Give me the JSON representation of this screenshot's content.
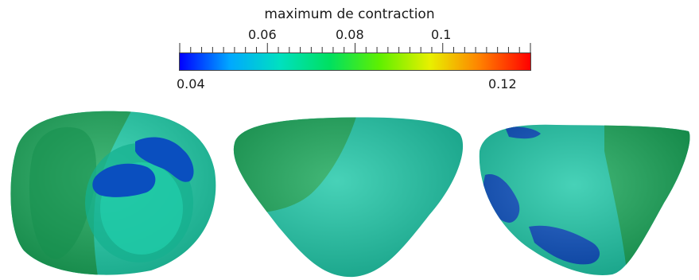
{
  "colorbar": {
    "title": "maximum de contraction",
    "min_label": "0.04",
    "max_label": "0.12",
    "tick_labels": [
      "0.06",
      "0.08",
      "0.1"
    ],
    "range": [
      0.04,
      0.12
    ],
    "colormap": [
      "#0000ff",
      "#00a8ff",
      "#00e0c0",
      "#00e060",
      "#60f000",
      "#e8f000",
      "#ff8000",
      "#ff0000"
    ]
  },
  "views": [
    {
      "name": "base-view",
      "colors": [
        "#1aa85a",
        "#1fcfaa",
        "#0a4fbf"
      ]
    },
    {
      "name": "anterior-view",
      "colors": [
        "#1aa85a",
        "#1fc8a8"
      ]
    },
    {
      "name": "lateral-view",
      "colors": [
        "#1aa85a",
        "#1fc8a8",
        "#0a4fbf"
      ]
    }
  ]
}
